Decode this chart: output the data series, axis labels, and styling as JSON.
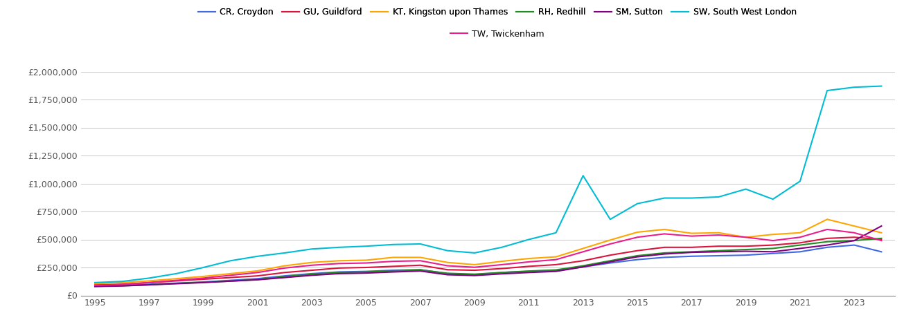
{
  "series": {
    "CR, Croydon": {
      "color": "#4169e1",
      "data": {
        "1995": 85000,
        "1996": 90000,
        "1997": 100000,
        "1998": 110000,
        "1999": 120000,
        "2000": 135000,
        "2001": 150000,
        "2002": 175000,
        "2003": 195000,
        "2004": 210000,
        "2005": 215000,
        "2006": 225000,
        "2007": 230000,
        "2008": 195000,
        "2009": 185000,
        "2010": 205000,
        "2011": 215000,
        "2012": 220000,
        "2013": 255000,
        "2014": 290000,
        "2015": 320000,
        "2016": 340000,
        "2017": 350000,
        "2018": 355000,
        "2019": 360000,
        "2020": 375000,
        "2021": 390000,
        "2022": 430000,
        "2023": 450000,
        "2024": 390000
      }
    },
    "GU, Guildford": {
      "color": "#dc143c",
      "data": {
        "1995": 95000,
        "1996": 100000,
        "1997": 115000,
        "1998": 130000,
        "1999": 145000,
        "2000": 160000,
        "2001": 175000,
        "2002": 205000,
        "2003": 225000,
        "2004": 245000,
        "2005": 250000,
        "2006": 260000,
        "2007": 270000,
        "2008": 230000,
        "2009": 225000,
        "2010": 240000,
        "2011": 260000,
        "2012": 275000,
        "2013": 310000,
        "2014": 360000,
        "2015": 400000,
        "2016": 430000,
        "2017": 430000,
        "2018": 440000,
        "2019": 440000,
        "2020": 450000,
        "2021": 470000,
        "2022": 510000,
        "2023": 520000,
        "2024": 500000
      }
    },
    "KT, Kingston upon Thames": {
      "color": "#ffa500",
      "data": {
        "1995": 105000,
        "1996": 115000,
        "1997": 130000,
        "1998": 150000,
        "1999": 170000,
        "2000": 195000,
        "2001": 220000,
        "2002": 265000,
        "2003": 295000,
        "2004": 310000,
        "2005": 315000,
        "2006": 340000,
        "2007": 340000,
        "2008": 295000,
        "2009": 275000,
        "2010": 305000,
        "2011": 330000,
        "2012": 345000,
        "2013": 420000,
        "2014": 495000,
        "2015": 565000,
        "2016": 590000,
        "2017": 555000,
        "2018": 560000,
        "2019": 520000,
        "2020": 545000,
        "2021": 560000,
        "2022": 680000,
        "2023": 620000,
        "2024": 560000
      }
    },
    "RH, Redhill": {
      "color": "#228b22",
      "data": {
        "1995": 82000,
        "1996": 87000,
        "1997": 95000,
        "1998": 108000,
        "1999": 118000,
        "2000": 128000,
        "2001": 142000,
        "2002": 168000,
        "2003": 190000,
        "2004": 205000,
        "2005": 210000,
        "2006": 220000,
        "2007": 228000,
        "2008": 198000,
        "2009": 190000,
        "2010": 205000,
        "2011": 218000,
        "2012": 228000,
        "2013": 265000,
        "2014": 310000,
        "2015": 355000,
        "2016": 380000,
        "2017": 390000,
        "2018": 400000,
        "2019": 410000,
        "2020": 420000,
        "2021": 450000,
        "2022": 480000,
        "2023": 490000,
        "2024": 510000
      }
    },
    "SM, Sutton": {
      "color": "#800080",
      "data": {
        "1995": 80000,
        "1996": 85000,
        "1997": 95000,
        "1998": 105000,
        "1999": 115000,
        "2000": 128000,
        "2001": 140000,
        "2002": 160000,
        "2003": 180000,
        "2004": 195000,
        "2005": 200000,
        "2006": 210000,
        "2007": 218000,
        "2008": 185000,
        "2009": 178000,
        "2010": 193000,
        "2011": 205000,
        "2012": 215000,
        "2013": 255000,
        "2014": 300000,
        "2015": 345000,
        "2016": 370000,
        "2017": 385000,
        "2018": 390000,
        "2019": 395000,
        "2020": 390000,
        "2021": 420000,
        "2022": 450000,
        "2023": 490000,
        "2024": 620000
      }
    },
    "SW, South West London": {
      "color": "#00bcd4",
      "data": {
        "1995": 115000,
        "1996": 125000,
        "1997": 155000,
        "1998": 195000,
        "1999": 250000,
        "2000": 310000,
        "2001": 350000,
        "2002": 380000,
        "2003": 415000,
        "2004": 430000,
        "2005": 440000,
        "2006": 455000,
        "2007": 460000,
        "2008": 400000,
        "2009": 380000,
        "2010": 430000,
        "2011": 500000,
        "2012": 560000,
        "2013": 1070000,
        "2014": 680000,
        "2015": 820000,
        "2016": 870000,
        "2017": 870000,
        "2018": 880000,
        "2019": 950000,
        "2020": 860000,
        "2021": 1020000,
        "2022": 1830000,
        "2023": 1860000,
        "2024": 1870000
      }
    },
    "TW, Twickenham": {
      "color": "#e91e8c",
      "data": {
        "1995": 90000,
        "1996": 97000,
        "1997": 115000,
        "1998": 135000,
        "1999": 155000,
        "2000": 180000,
        "2001": 205000,
        "2002": 245000,
        "2003": 270000,
        "2004": 285000,
        "2005": 290000,
        "2006": 305000,
        "2007": 310000,
        "2008": 265000,
        "2009": 252000,
        "2010": 275000,
        "2011": 300000,
        "2012": 320000,
        "2013": 390000,
        "2014": 460000,
        "2015": 520000,
        "2016": 550000,
        "2017": 530000,
        "2018": 540000,
        "2019": 520000,
        "2020": 490000,
        "2021": 520000,
        "2022": 590000,
        "2023": 560000,
        "2024": 490000
      }
    }
  },
  "ylim": [
    0,
    2000000
  ],
  "yticks": [
    0,
    250000,
    500000,
    750000,
    1000000,
    1250000,
    1500000,
    1750000,
    2000000
  ],
  "xticks": [
    1995,
    1997,
    1999,
    2001,
    2003,
    2005,
    2007,
    2009,
    2011,
    2013,
    2015,
    2017,
    2019,
    2021,
    2023
  ],
  "xlim": [
    1994.5,
    2024.5
  ],
  "background_color": "#ffffff",
  "grid_color": "#cccccc",
  "legend_row1": [
    "CR, Croydon",
    "GU, Guildford",
    "KT, Kingston upon Thames",
    "RH, Redhill",
    "SM, Sutton",
    "SW, South West London"
  ],
  "legend_row2": [
    "TW, Twickenham"
  ],
  "legend_order": [
    "CR, Croydon",
    "GU, Guildford",
    "KT, Kingston upon Thames",
    "RH, Redhill",
    "SM, Sutton",
    "SW, South West London",
    "TW, Twickenham"
  ]
}
